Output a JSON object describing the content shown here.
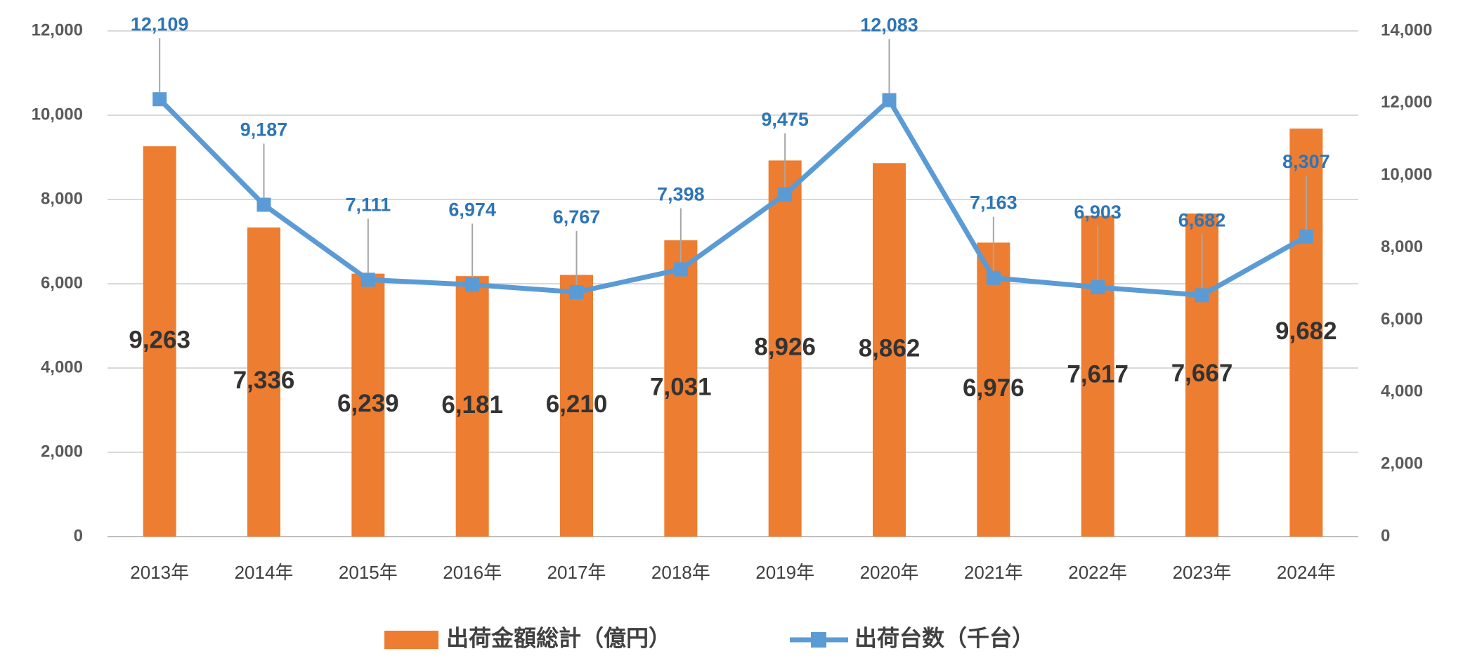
{
  "chart_data": {
    "type": "combo",
    "categories": [
      "2013年",
      "2014年",
      "2015年",
      "2016年",
      "2017年",
      "2018年",
      "2019年",
      "2020年",
      "2021年",
      "2022年",
      "2023年",
      "2024年"
    ],
    "series": [
      {
        "name": "出荷金額総計（億円）",
        "type": "bar",
        "color": "#ED7D31",
        "values": [
          9263,
          7336,
          6239,
          6181,
          6210,
          7031,
          8926,
          8862,
          6976,
          7617,
          7667,
          9682
        ],
        "value_labels": [
          "9,263",
          "7,336",
          "6,239",
          "6,181",
          "6,210",
          "7,031",
          "8,926",
          "8,862",
          "6,976",
          "7,617",
          "7,667",
          "9,682"
        ]
      },
      {
        "name": "出荷台数（千台）",
        "type": "line",
        "axis": "y2",
        "color": "#5B9BD5",
        "values": [
          12109,
          9187,
          7111,
          6974,
          6767,
          7398,
          9475,
          12083,
          7163,
          6903,
          6682,
          8307
        ],
        "value_labels": [
          "12,109",
          "9,187",
          "7,111",
          "6,974",
          "6,767",
          "7,398",
          "9,475",
          "12,083",
          "7,163",
          "6,903",
          "6,682",
          "8,307"
        ]
      }
    ],
    "ylim": [
      0,
      12000
    ],
    "yticks": [
      0,
      {
        "value": 2000,
        "label": "2,000"
      },
      {
        "value": 4000,
        "label": "4,000"
      },
      {
        "value": 6000,
        "label": "6,000"
      },
      {
        "value": 8000,
        "label": "8,000"
      },
      {
        "value": 10000,
        "label": "10,000"
      },
      {
        "value": 12000,
        "label": "12,000"
      }
    ],
    "y2lim": [
      0,
      14000
    ],
    "y2ticks": [
      0,
      {
        "value": 2000,
        "label": "2,000"
      },
      {
        "value": 4000,
        "label": "4,000"
      },
      {
        "value": 6000,
        "label": "6,000"
      },
      {
        "value": 8000,
        "label": "8,000"
      },
      {
        "value": 10000,
        "label": "10,000"
      },
      {
        "value": 12000,
        "label": "12,000"
      },
      {
        "value": 14000,
        "label": "14,000"
      }
    ],
    "grid": true,
    "legend": "bottom"
  }
}
